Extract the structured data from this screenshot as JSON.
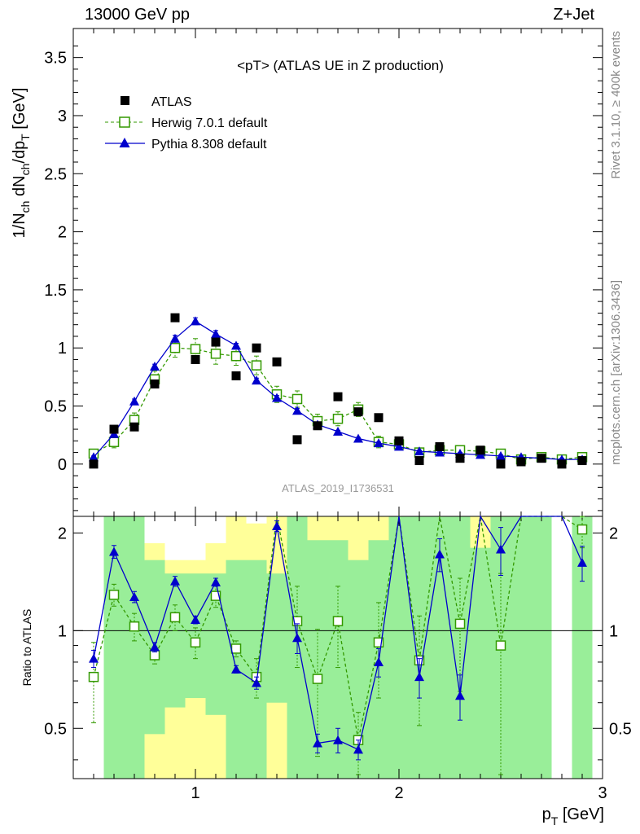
{
  "header": {
    "process_left": "13000 GeV pp",
    "process_right": "Z+Jet"
  },
  "side": {
    "rivet": "Rivet 3.1.10, ≥ 400k events",
    "mcplots": "mcplots.cern.ch [arXiv:1306.3436]"
  },
  "chart_data": {
    "type": "scatter",
    "title": "<pT> (ATLAS UE in Z production)",
    "analysis_id": "ATLAS_2019_I1736531",
    "xlabel": "p",
    "xlabel_sub": "T",
    "xlabel_unit": "[GeV]",
    "ylabel": "1/N_ch dN_ch/dp_T [GeV]",
    "ratio_ylabel": "Ratio to ATLAS",
    "xlim": [
      0.4,
      3.0
    ],
    "ylim": [
      -0.45,
      3.75
    ],
    "ratio_ylim": [
      0.35,
      2.25
    ],
    "x_ticks": [
      "1",
      "2",
      "3"
    ],
    "y_ticks": [
      "0",
      "0.5",
      "1",
      "1.5",
      "2",
      "2.5",
      "3",
      "3.5"
    ],
    "ratio_ticks": [
      "0.5",
      "1",
      "2"
    ],
    "legend": {
      "atlas": "ATLAS",
      "herwig": "Herwig 7.0.1 default",
      "pythia": "Pythia 8.308 default"
    },
    "colors": {
      "atlas": "#000000",
      "herwig": "#339900",
      "pythia": "#0000cc",
      "band_inner": "#99ee99",
      "band_outer": "#ffff99"
    },
    "x": [
      0.5,
      0.6,
      0.7,
      0.8,
      0.9,
      1.0,
      1.1,
      1.2,
      1.3,
      1.4,
      1.5,
      1.6,
      1.7,
      1.8,
      1.9,
      2.0,
      2.1,
      2.2,
      2.3,
      2.4,
      2.5,
      2.6,
      2.7,
      2.8,
      2.9
    ],
    "atlas": [
      0.0,
      0.3,
      0.32,
      0.69,
      1.26,
      0.9,
      1.05,
      0.76,
      1.0,
      0.88,
      0.21,
      0.33,
      0.58,
      0.45,
      0.4,
      0.2,
      0.03,
      0.15,
      0.05,
      0.12,
      0.0,
      0.02,
      0.05,
      0.0,
      0.03
    ],
    "atlas_err": [
      0.02,
      0.03,
      0.03,
      0.03,
      0.04,
      0.04,
      0.04,
      0.04,
      0.04,
      0.04,
      0.04,
      0.04,
      0.04,
      0.04,
      0.03,
      0.03,
      0.03,
      0.03,
      0.03,
      0.03,
      0.03,
      0.03,
      0.03,
      0.03,
      0.03
    ],
    "herwig": [
      0.09,
      0.19,
      0.38,
      0.73,
      1.0,
      0.99,
      0.95,
      0.93,
      0.85,
      0.6,
      0.56,
      0.37,
      0.39,
      0.47,
      0.19,
      0.17,
      0.1,
      0.12,
      0.12,
      0.11,
      0.09,
      0.04,
      0.06,
      0.04,
      0.06
    ],
    "herwig_err": [
      0.03,
      0.05,
      0.06,
      0.07,
      0.08,
      0.09,
      0.09,
      0.08,
      0.08,
      0.07,
      0.07,
      0.06,
      0.06,
      0.06,
      0.05,
      0.04,
      0.03,
      0.03,
      0.03,
      0.03,
      0.03,
      0.02,
      0.02,
      0.02,
      0.02
    ],
    "pythia": [
      0.06,
      0.26,
      0.54,
      0.84,
      1.08,
      1.23,
      1.12,
      1.02,
      0.72,
      0.57,
      0.46,
      0.34,
      0.28,
      0.22,
      0.18,
      0.15,
      0.11,
      0.1,
      0.09,
      0.08,
      0.07,
      0.06,
      0.05,
      0.04,
      0.04
    ],
    "pythia_err": [
      0.01,
      0.02,
      0.02,
      0.02,
      0.03,
      0.03,
      0.03,
      0.02,
      0.02,
      0.02,
      0.02,
      0.02,
      0.01,
      0.01,
      0.01,
      0.01,
      0.01,
      0.01,
      0.01,
      0.01,
      0.01,
      0.01,
      0.01,
      0.01,
      0.01
    ],
    "ratio_herwig": [
      0.72,
      1.29,
      1.03,
      0.84,
      1.1,
      0.92,
      1.28,
      0.88,
      0.72,
      null,
      1.07,
      0.71,
      1.07,
      0.46,
      0.92,
      null,
      0.81,
      null,
      1.05,
      null,
      0.9,
      null,
      null,
      null,
      2.05
    ],
    "ratio_herwig_err": [
      0.2,
      0.1,
      0.1,
      0.05,
      0.1,
      0.1,
      0.1,
      0.05,
      0.1,
      null,
      0.3,
      0.3,
      0.3,
      0.1,
      0.3,
      null,
      0.3,
      null,
      0.4,
      null,
      0.6,
      null,
      null,
      null,
      0.25
    ],
    "ratio_pythia": [
      0.82,
      1.75,
      1.27,
      0.89,
      1.42,
      1.08,
      1.41,
      0.76,
      0.69,
      2.1,
      0.95,
      0.45,
      0.46,
      0.43,
      0.8,
      null,
      0.72,
      1.72,
      0.63,
      null,
      1.78,
      null,
      null,
      null,
      1.62
    ],
    "ratio_pythia_err": [
      0.05,
      0.08,
      0.05,
      0.03,
      0.05,
      0.03,
      0.04,
      0.02,
      0.03,
      0.08,
      0.1,
      0.03,
      0.04,
      0.03,
      0.08,
      null,
      0.1,
      0.2,
      0.1,
      null,
      0.3,
      null,
      null,
      null,
      0.2
    ]
  }
}
